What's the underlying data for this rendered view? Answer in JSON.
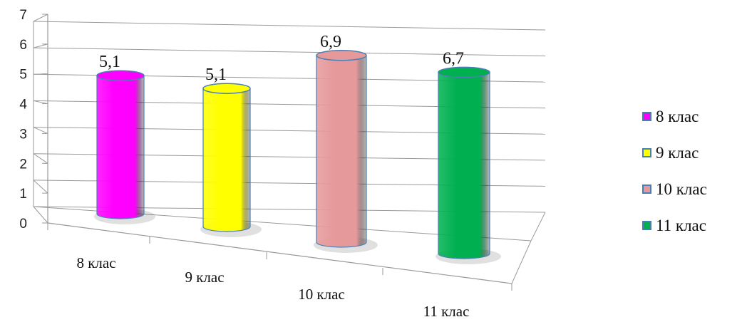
{
  "chart_data": {
    "type": "bar",
    "style": "3d-cylinder",
    "categories": [
      "8 клас",
      "9 клас",
      "10 клас",
      "11 клас"
    ],
    "values": [
      5.1,
      5.1,
      6.9,
      6.7
    ],
    "value_labels": [
      "5,1",
      "5,1",
      "6,9",
      "6,7"
    ],
    "colors": [
      "#ff00ff",
      "#ffff00",
      "#e6999a",
      "#00b050"
    ],
    "y_ticks": [
      "0",
      "1",
      "2",
      "3",
      "4",
      "5",
      "6",
      "7"
    ],
    "ylim": [
      0,
      7
    ],
    "grid": true,
    "legend": {
      "position": "right",
      "entries": [
        "8 клас",
        "9 клас",
        "10 клас",
        "11 клас"
      ]
    }
  }
}
